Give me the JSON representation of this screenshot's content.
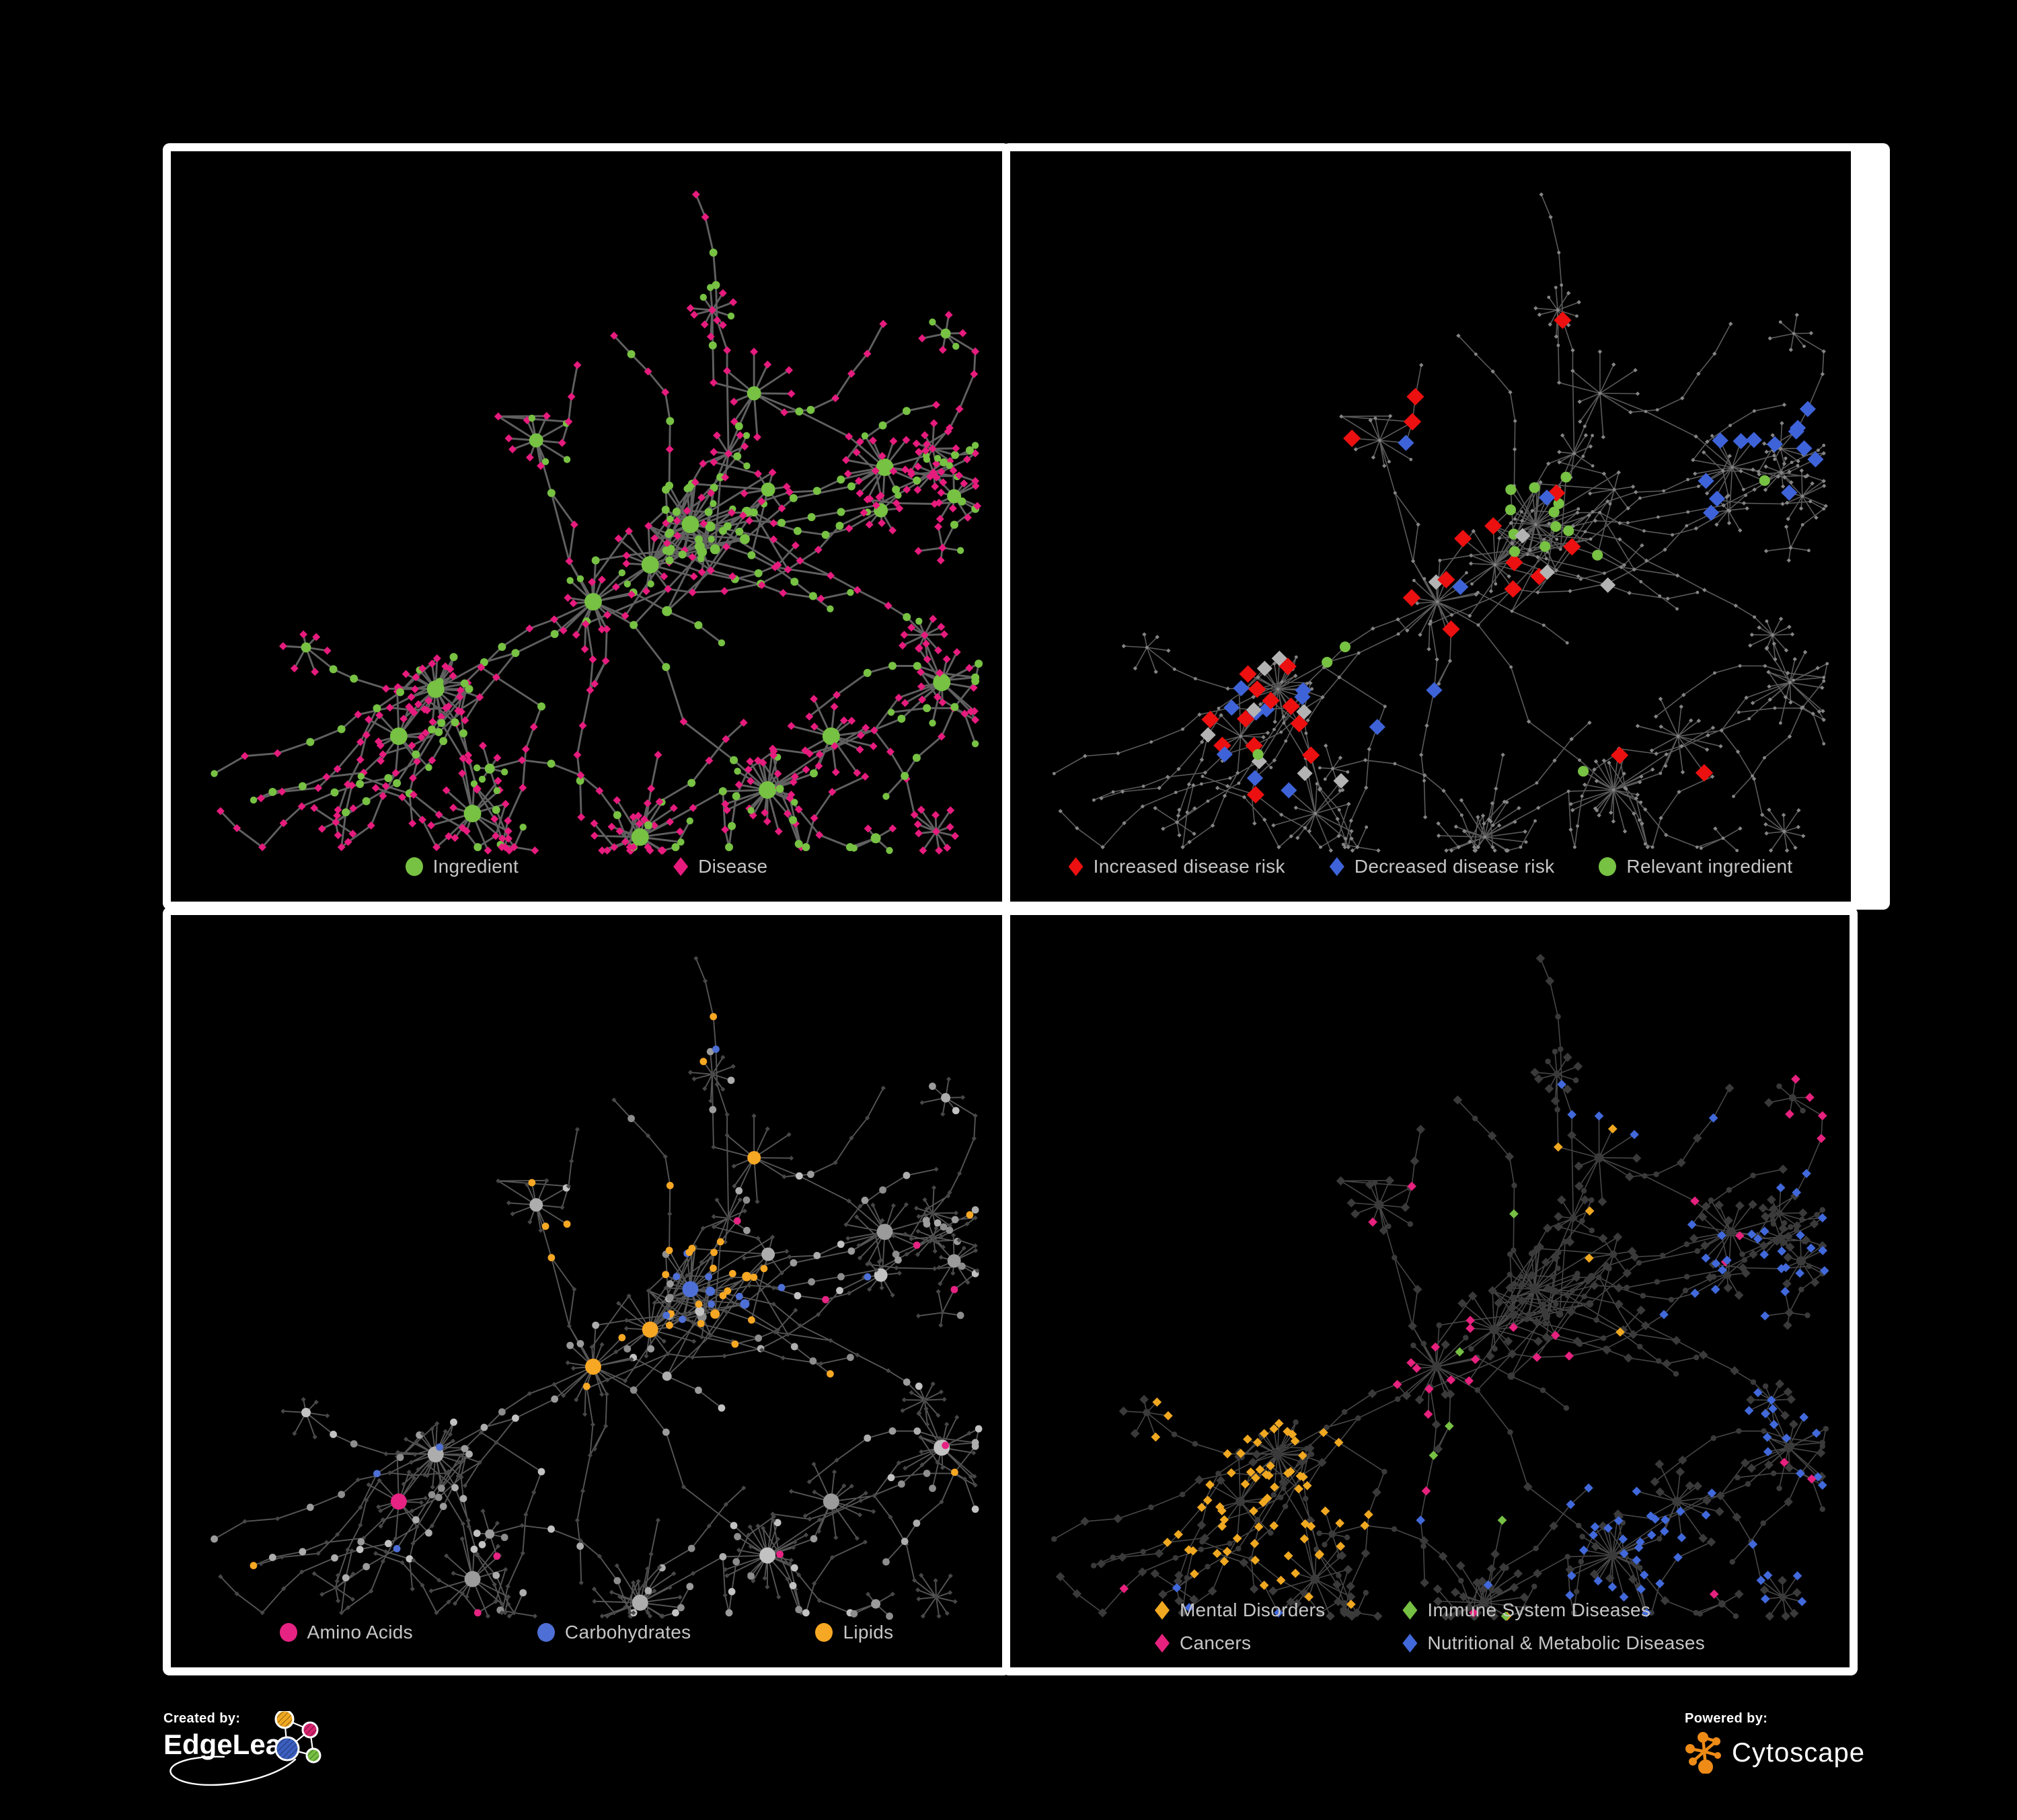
{
  "panels": [
    {
      "id": "ingredient-disease",
      "legend_rows": [
        [
          {
            "label": "Ingredient",
            "shape": "circle",
            "color": "#77C143"
          },
          {
            "label": "Disease",
            "shape": "diamond",
            "color": "#E61B7D"
          }
        ]
      ]
    },
    {
      "id": "disease-risk",
      "legend_rows": [
        [
          {
            "label": "Increased disease risk",
            "shape": "diamond",
            "color": "#EC1010"
          },
          {
            "label": "Decreased disease risk",
            "shape": "diamond",
            "color": "#3E63D9"
          },
          {
            "label": "Relevant ingredient",
            "shape": "circle",
            "color": "#77C143"
          }
        ]
      ]
    },
    {
      "id": "nutrient-classes",
      "legend_rows": [
        [
          {
            "label": "Amino Acids",
            "shape": "circle",
            "color": "#E62383"
          },
          {
            "label": "Carbohydrates",
            "shape": "circle",
            "color": "#4D6FD6"
          },
          {
            "label": "Lipids",
            "shape": "circle",
            "color": "#F6A723"
          }
        ]
      ]
    },
    {
      "id": "disease-categories",
      "legend_rows": [
        [
          {
            "label": "Mental Disorders",
            "shape": "diamond",
            "color": "#F0A821"
          },
          {
            "label": "Immune System Diseases",
            "shape": "diamond",
            "color": "#76C043"
          }
        ],
        [
          {
            "label": "Cancers",
            "shape": "diamond",
            "color": "#E6217E"
          },
          {
            "label": "Nutritional & Metabolic Diseases",
            "shape": "diamond",
            "color": "#4169DB"
          }
        ]
      ]
    }
  ],
  "footer": {
    "created_by": "Created by:",
    "created_brand": "EdgeLeap",
    "powered_by": "Powered by:",
    "powered_brand": "Cytoscape",
    "edgeleap_node_colors": [
      "#F0A821",
      "#D6246E",
      "#3B5FC0",
      "#76C043"
    ],
    "cytoscape_orange": "#EE8B17"
  },
  "network": {
    "type": "node-link-graph",
    "seed": 1337,
    "background": "#000000",
    "node_types": {
      "circle": "ingredient",
      "diamond": "disease"
    },
    "hubs": [
      [
        395,
        800,
        26,
        0.12
      ],
      [
        340,
        870,
        13,
        0.1
      ],
      [
        630,
        670,
        18,
        0.3
      ],
      [
        715,
        615,
        16,
        0.3
      ],
      [
        775,
        555,
        26,
        0.75
      ],
      [
        890,
        950,
        24,
        0.08
      ],
      [
        450,
        985,
        14,
        0.1
      ],
      [
        700,
        1020,
        22,
        0.06
      ],
      [
        1065,
        470,
        13,
        0.15
      ],
      [
        1150,
        790,
        15,
        0.1
      ],
      [
        985,
        870,
        12,
        0.1
      ],
      [
        545,
        430,
        12,
        0.2
      ],
      [
        870,
        360,
        10,
        0.2
      ]
    ],
    "panel_styles": {
      "p1": {
        "edge": "#6a6a6a",
        "edge_width": 2.9,
        "edge_opacity": 0.9,
        "ingredient": "#77C143",
        "disease": "#E61B7D"
      },
      "p2": {
        "edge": "#717171",
        "edge_width": 1.6,
        "edge_opacity": 0.8,
        "base": "#858585",
        "increased": "#EC1010",
        "decreased": "#3E63D9",
        "neutral": "#B3B3B3",
        "relevant": "#77C143"
      },
      "p3": {
        "edge": "#646464",
        "edge_width": 1.9,
        "edge_opacity": 0.85,
        "base_shades": [
          "#C2C2C2",
          "#ADADAD",
          "#9B9B9B",
          "#8D8D8D"
        ],
        "disease": "#474747",
        "amino": "#E62383",
        "carb": "#4D6FD6",
        "lipid": "#F6A723"
      },
      "p4": {
        "edge": "#585858",
        "edge_width": 1.6,
        "edge_opacity": 0.8,
        "base": "#3A3A3A",
        "mental": "#F0A821",
        "immune": "#76C043",
        "cancer": "#E6217E",
        "nutri": "#4169DB"
      }
    }
  }
}
